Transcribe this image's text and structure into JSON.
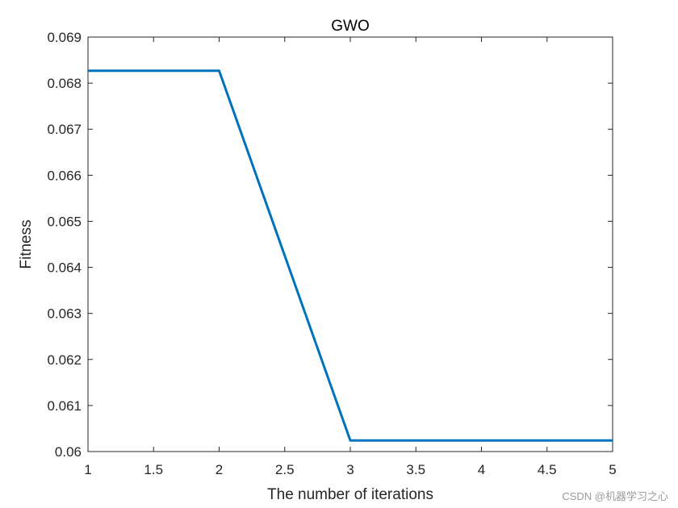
{
  "chart_data": {
    "type": "line",
    "title": "GWO",
    "xlabel": "The number of iterations",
    "ylabel": "Fitness",
    "xlim": [
      1,
      5
    ],
    "ylim": [
      0.06,
      0.069
    ],
    "x_ticks": [
      "1",
      "1.5",
      "2",
      "2.5",
      "3",
      "3.5",
      "4",
      "4.5",
      "5"
    ],
    "y_ticks": [
      "0.06",
      "0.061",
      "0.062",
      "0.063",
      "0.064",
      "0.065",
      "0.066",
      "0.067",
      "0.068",
      "0.069"
    ],
    "grid": false,
    "series": [
      {
        "color": "#0072BD",
        "x": [
          1,
          2,
          3,
          4,
          5
        ],
        "y": [
          0.06827,
          0.06827,
          0.06024,
          0.06024,
          0.06024
        ]
      }
    ]
  },
  "watermark": "CSDN @机器学习之心"
}
